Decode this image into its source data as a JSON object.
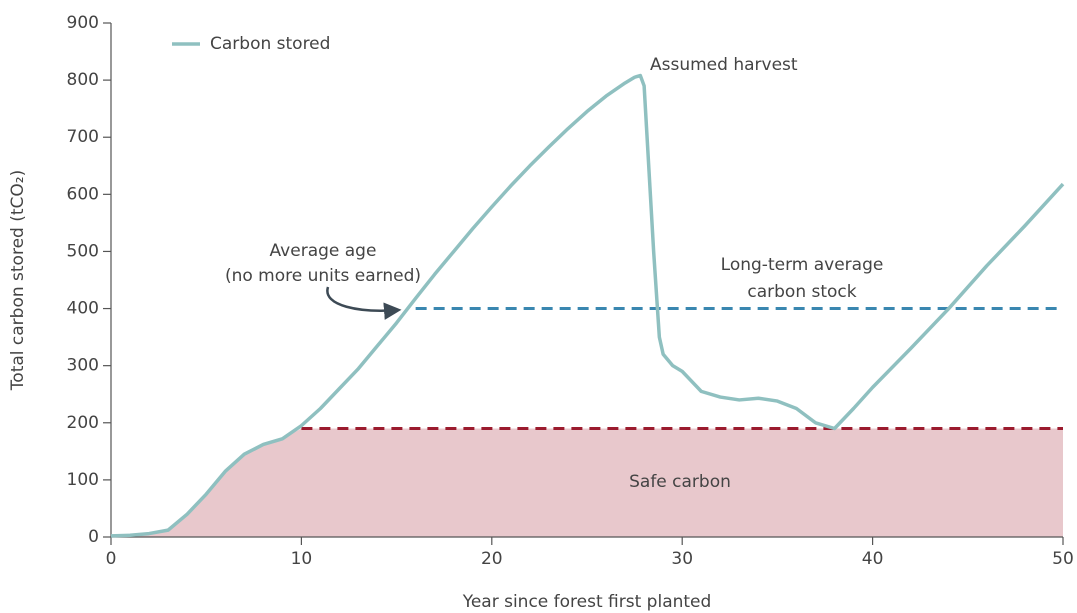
{
  "chart_data": {
    "type": "line",
    "xlabel": "Year since forest first planted",
    "ylabel": "Total carbon stored (tCO₂)",
    "x": [
      0,
      1,
      2,
      3,
      4,
      5,
      6,
      7,
      8,
      9,
      10,
      11,
      12,
      13,
      14,
      15,
      16,
      17,
      18,
      19,
      20,
      21,
      22,
      23,
      24,
      25,
      26,
      27,
      27.5,
      27.8,
      28,
      28.5,
      28.8,
      29,
      29.5,
      30,
      31,
      32,
      33,
      34,
      35,
      36,
      37,
      38,
      39,
      40,
      42,
      44,
      46,
      48,
      50
    ],
    "series": [
      {
        "name": "Carbon stored",
        "color": "#8fc0c0",
        "values": [
          2,
          3,
          6,
          12,
          40,
          75,
          115,
          145,
          162,
          172,
          195,
          225,
          260,
          295,
          335,
          375,
          418,
          460,
          500,
          540,
          578,
          615,
          650,
          683,
          715,
          745,
          772,
          795,
          805,
          808,
          790,
          500,
          350,
          320,
          300,
          290,
          255,
          245,
          240,
          243,
          238,
          225,
          200,
          190,
          225,
          262,
          330,
          400,
          475,
          545,
          618
        ]
      }
    ],
    "reference_lines": [
      {
        "value": 400,
        "x_start": 16,
        "color": "#3a87b0"
      },
      {
        "value": 190,
        "x_start": 10,
        "color": "#9b1b2e"
      }
    ],
    "area_color": "#e8c8cc",
    "annotations": [
      "Assumed harvest",
      "Average age",
      "(no more units earned)",
      "Long-term average",
      "carbon stock",
      "Safe carbon"
    ],
    "xlim": [
      0,
      50
    ],
    "xticks": [
      0,
      10,
      20,
      30,
      40,
      50
    ],
    "ylim": [
      0,
      900
    ],
    "yticks": [
      0,
      100,
      200,
      300,
      400,
      500,
      600,
      700,
      800,
      900
    ],
    "legend": "upper left"
  }
}
